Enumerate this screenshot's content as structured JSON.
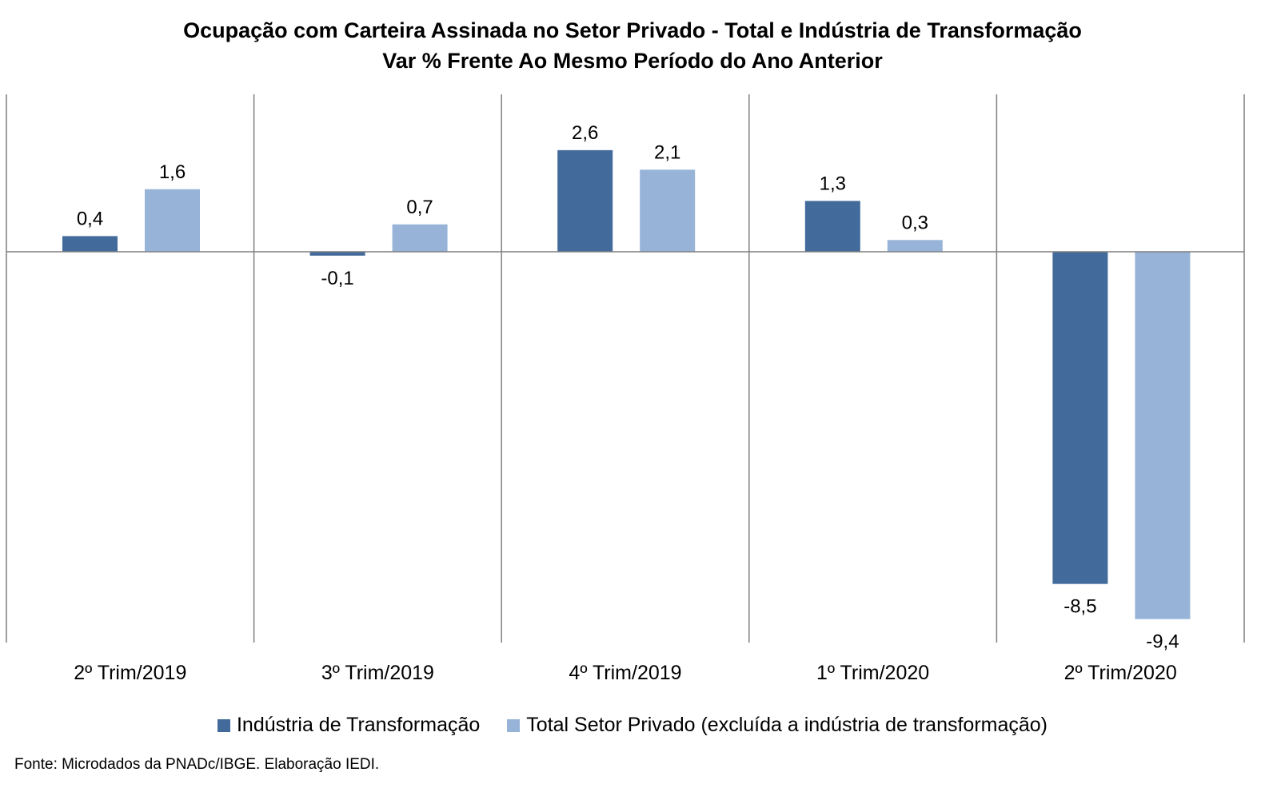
{
  "chart_data": {
    "type": "bar",
    "title": "Ocupação com Carteira Assinada no Setor Privado - Total e Indústria de Transformação",
    "subtitle": "Var % Frente Ao Mesmo Período do Ano Anterior",
    "categories": [
      "2º Trim/2019",
      "3º Trim/2019",
      "4º Trim/2019",
      "1º Trim/2020",
      "2º Trim/2020"
    ],
    "series": [
      {
        "name": "Indústria de Transformação",
        "color": "#426A9B",
        "values": [
          0.4,
          -0.1,
          2.6,
          1.3,
          -8.5
        ],
        "labels": [
          "0,4",
          "-0,1",
          "2,6",
          "1,3",
          "-8,5"
        ]
      },
      {
        "name": "Total Setor Privado (excluída a indústria de transformação)",
        "color": "#97B4D8",
        "values": [
          1.6,
          0.7,
          2.1,
          0.3,
          -9.4
        ],
        "labels": [
          "1,6",
          "0,7",
          "2,1",
          "0,3",
          "-9,4"
        ]
      }
    ],
    "ylim": [
      -10,
      4
    ],
    "grid": false,
    "legend_position": "bottom",
    "source": "Fonte: Microdados da PNADc/IBGE. Elaboração IEDI."
  }
}
